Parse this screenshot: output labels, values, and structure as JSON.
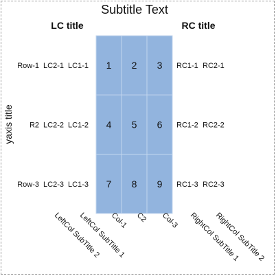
{
  "chart_data": {
    "type": "table",
    "title": "Subtitle Text",
    "ylabel": "yaxis title",
    "left_header": "LC title",
    "right_header": "RC title",
    "cell_color": "#92b4de",
    "grid_color": "#c3d6ee",
    "text_color": "#ffffff",
    "rows": [
      {
        "label": "Row-1",
        "lc2": "LC2-1",
        "lc1": "LC1-1",
        "rc1": "RC1-1",
        "rc2": "RC2-1"
      },
      {
        "label": "R2",
        "lc2": "LC2-2",
        "lc1": "LC1-2",
        "rc1": "RC1-2",
        "rc2": "RC2-2"
      },
      {
        "label": "Row-3",
        "lc2": "LC2-3",
        "lc1": "LC1-3",
        "rc1": "RC1-3",
        "rc2": "RC2-3"
      }
    ],
    "columns": [
      "Col-1",
      "C2",
      "Col-3"
    ],
    "values": [
      [
        1,
        2,
        3
      ],
      [
        4,
        5,
        6
      ],
      [
        7,
        8,
        9
      ]
    ],
    "left_subtitles": [
      "LeftCol SubTitle 2",
      "LeftCol SubTitle 1"
    ],
    "right_subtitles": [
      "RightCol SubTitle 1",
      "RightCol SubTitle 2"
    ]
  }
}
